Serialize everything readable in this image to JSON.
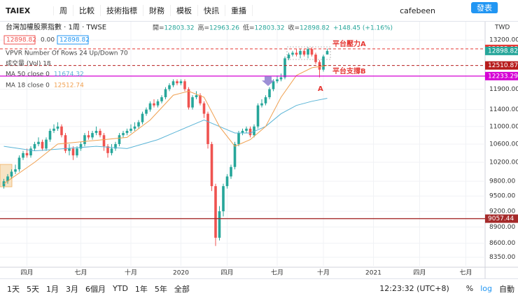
{
  "toolbar": {
    "symbol": "TAIEX",
    "interval": "周",
    "buttons": [
      "比較",
      "技術指標",
      "財務",
      "模板",
      "快訊",
      "重播"
    ],
    "user": "cafebeen",
    "publish": "發表"
  },
  "legend": {
    "title": "台灣加權股票指數 · 1周 · TWSE",
    "ohlc": [
      {
        "label": "開=",
        "value": 12803.32
      },
      {
        "label": "高=",
        "value": 12963.26
      },
      {
        "label": "低=",
        "value": 12803.32
      },
      {
        "label": "收=",
        "value": 12898.82
      }
    ],
    "change": "+148.45 (+1.16%)",
    "bid": 12898.82,
    "spread": "0.00",
    "ask": 12898.82,
    "indicators": [
      "VPVR Number Of Rows 24 Up/Down 70",
      "成交量 (Vol) 18"
    ]
  },
  "chart_data": {
    "type": "candlestick",
    "log_scale": true,
    "up_color": "#26a69a",
    "down_color": "#ef5350",
    "currency": "TWD",
    "open": [
      9700,
      9800,
      9900,
      10000,
      10050,
      10300,
      10400,
      10350,
      10500,
      10600,
      10650,
      10500,
      10700,
      10900,
      10950,
      11000,
      10800,
      10450,
      10500,
      10350,
      10500,
      10600,
      10800,
      10750,
      10850,
      10900,
      10800,
      10550,
      10400,
      10500,
      10600,
      10800,
      10850,
      10900,
      10950,
      11000,
      11100,
      11300,
      11400,
      11550,
      11500,
      11600,
      11700,
      11900,
      12000,
      12100,
      12050,
      12100,
      11900,
      11450,
      11700,
      11750,
      11550,
      11300,
      10600,
      9700,
      8700,
      9200,
      9700,
      9900,
      10100,
      10600,
      10850,
      10900,
      10950,
      10800,
      11000,
      11500,
      11550,
      11700,
      11900,
      12100,
      12150,
      12200,
      12700,
      12800,
      12850,
      12800,
      12900,
      12800,
      12950,
      12800,
      12600,
      12400,
      12803.32
    ],
    "high": [
      9850,
      9950,
      10050,
      10150,
      10350,
      10450,
      10500,
      10550,
      10650,
      10750,
      10700,
      10750,
      10950,
      11050,
      11100,
      11050,
      10850,
      10600,
      10550,
      10550,
      10650,
      10850,
      10900,
      10900,
      11000,
      10950,
      10850,
      10600,
      10600,
      10650,
      10850,
      10900,
      10950,
      11050,
      11100,
      11150,
      11350,
      11450,
      11600,
      11650,
      11650,
      11750,
      11950,
      12050,
      12150,
      12150,
      12150,
      12150,
      11950,
      11750,
      11850,
      11800,
      11600,
      11350,
      10650,
      9750,
      9300,
      9750,
      9950,
      10150,
      10650,
      10900,
      10950,
      11000,
      11000,
      11050,
      11550,
      11650,
      11750,
      11950,
      12150,
      12250,
      12300,
      12750,
      12850,
      12900,
      12950,
      12950,
      12950,
      13000,
      13000,
      12850,
      12650,
      12800,
      12963.26
    ],
    "low": [
      9650,
      9750,
      9850,
      9950,
      10000,
      10250,
      10300,
      10300,
      10450,
      10550,
      10450,
      10450,
      10650,
      10850,
      10900,
      10750,
      10400,
      10350,
      10250,
      10300,
      10450,
      10550,
      10700,
      10700,
      10800,
      10750,
      10450,
      10300,
      10350,
      10450,
      10550,
      10750,
      10800,
      10850,
      10900,
      10950,
      11050,
      11250,
      11350,
      11450,
      11450,
      11550,
      11650,
      11850,
      11950,
      12000,
      12000,
      11850,
      11400,
      11400,
      11650,
      11500,
      11200,
      10500,
      9600,
      8550,
      8650,
      9100,
      9650,
      9850,
      10050,
      10550,
      10800,
      10850,
      10750,
      10750,
      10950,
      11450,
      11500,
      11650,
      11850,
      12050,
      12100,
      12150,
      12650,
      12750,
      12750,
      12700,
      12750,
      12700,
      12750,
      12550,
      12200,
      12350,
      12803.32
    ],
    "close": [
      9800,
      9900,
      10000,
      10050,
      10300,
      10400,
      10350,
      10500,
      10600,
      10650,
      10500,
      10700,
      10900,
      10950,
      11000,
      10800,
      10450,
      10500,
      10350,
      10500,
      10600,
      10800,
      10750,
      10850,
      10900,
      10800,
      10550,
      10400,
      10500,
      10600,
      10800,
      10850,
      10900,
      10950,
      11000,
      11100,
      11300,
      11400,
      11550,
      11500,
      11600,
      11700,
      11900,
      12000,
      12100,
      12050,
      12100,
      11900,
      11450,
      11700,
      11750,
      11550,
      11300,
      10600,
      9700,
      8700,
      9200,
      9700,
      9900,
      10100,
      10600,
      10850,
      10900,
      10950,
      10800,
      11000,
      11500,
      11550,
      11700,
      11900,
      12100,
      12150,
      12200,
      12700,
      12800,
      12850,
      12800,
      12900,
      12800,
      12950,
      12800,
      12600,
      12400,
      12750.37,
      12898.82
    ],
    "series": [
      {
        "name": "MA 50 close 0",
        "color": "#5ab4d6",
        "x": [
          0,
          8,
          16,
          24,
          32,
          40,
          48,
          52,
          56,
          60,
          64,
          68,
          72,
          76,
          80,
          84
        ],
        "values": [
          10550,
          10450,
          10500,
          10550,
          10500,
          10700,
          11000,
          11150,
          11000,
          10850,
          10850,
          11000,
          11300,
          11500,
          11600,
          11674.32
        ]
      },
      {
        "name": "MA 18 close 0",
        "color": "#f0a050",
        "x": [
          0,
          8,
          14,
          20,
          26,
          32,
          38,
          44,
          48,
          52,
          56,
          60,
          64,
          68,
          72,
          76,
          80,
          84
        ],
        "values": [
          9750,
          10200,
          10600,
          10650,
          10700,
          10750,
          11150,
          11750,
          11850,
          11700,
          11000,
          10550,
          10700,
          11000,
          11700,
          12250,
          12450,
          12512.74
        ]
      }
    ],
    "levels": [
      {
        "value": 12955.08,
        "color": "#e53935",
        "style": "dashed",
        "label": "平台壓力A"
      },
      {
        "value": 12510.87,
        "color": "#b71c1c",
        "style": "dashed"
      },
      {
        "value": 12233.29,
        "color": "#d500d5",
        "style": "solid",
        "label": "平台支撐B"
      },
      {
        "value": 9057.44,
        "color": "#a52a2a",
        "style": "solid"
      }
    ],
    "current_color": "#26a69a",
    "annotations": [
      "A"
    ],
    "ylim": [
      8200,
      13700
    ],
    "yticks": [
      {
        "value": 13200,
        "label": "13200.00"
      },
      {
        "value": 11900,
        "label": "11900.00"
      },
      {
        "value": 11400,
        "label": "11400.00"
      },
      {
        "value": 11000,
        "label": "11000.00"
      },
      {
        "value": 10600,
        "label": "10600.00"
      },
      {
        "value": 10200,
        "label": "10200.00"
      },
      {
        "value": 9800,
        "label": "9800.00"
      },
      {
        "value": 9500,
        "label": "9500.00"
      },
      {
        "value": 9200,
        "label": "9200.00"
      },
      {
        "value": 8900,
        "label": "8900.00"
      },
      {
        "value": 8600,
        "label": "8600.00"
      },
      {
        "value": 8350,
        "label": "8350.00"
      }
    ],
    "xlim": [
      -1,
      125
    ],
    "xticks": [
      {
        "value": 6,
        "label": "四月"
      },
      {
        "value": 20,
        "label": "七月"
      },
      {
        "value": 33,
        "label": "十月"
      },
      {
        "value": 46,
        "label": "2020"
      },
      {
        "value": 58,
        "label": "四月"
      },
      {
        "value": 71,
        "label": "七月"
      },
      {
        "value": 83,
        "label": "十月"
      },
      {
        "value": 96,
        "label": "2021"
      },
      {
        "value": 108,
        "label": "四月"
      },
      {
        "value": 120,
        "label": "七月"
      }
    ],
    "grid": true
  },
  "bottom_bar": {
    "ranges": [
      "1天",
      "5天",
      "1月",
      "3月",
      "6個月",
      "YTD",
      "1年",
      "5年",
      "全部"
    ],
    "time": "12:23:32 (UTC+8)",
    "options": [
      "%",
      "log",
      "自動"
    ]
  }
}
